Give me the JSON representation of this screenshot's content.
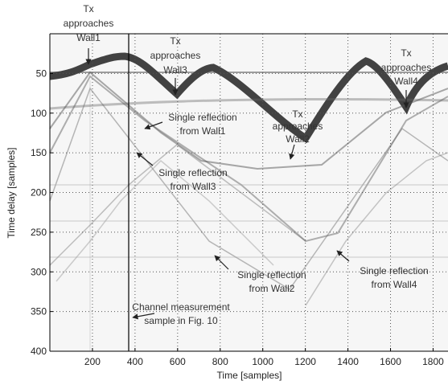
{
  "chart_data": {
    "type": "image",
    "xlabel": "Time [samples]",
    "ylabel": "Time delay [samples]",
    "xlim": [
      0,
      1870
    ],
    "ylim": [
      400,
      0
    ],
    "xticks": [
      200,
      400,
      600,
      800,
      1000,
      1200,
      1400,
      1600,
      1800
    ],
    "yticks": [
      50,
      100,
      150,
      200,
      250,
      300,
      350,
      400
    ],
    "grid": true,
    "annotations": [
      {
        "lines": [
          "Tx",
          "approaches",
          "Wall1"
        ]
      },
      {
        "lines": [
          "Tx",
          "approaches",
          "Wall3"
        ]
      },
      {
        "lines": [
          "Tx",
          "approaches",
          "Wall2"
        ]
      },
      {
        "lines": [
          "Tx",
          "approaches",
          "Wall4"
        ]
      },
      {
        "lines": [
          "Single reflection",
          "from Wall1"
        ]
      },
      {
        "lines": [
          "Single reflection",
          "from Wall3"
        ]
      },
      {
        "lines": [
          "Single reflection",
          "from Wall2"
        ]
      },
      {
        "lines": [
          "Single reflection",
          "from Wall4"
        ]
      },
      {
        "lines": [
          "Channel measurement",
          "sample in Fig. 10"
        ]
      }
    ]
  }
}
